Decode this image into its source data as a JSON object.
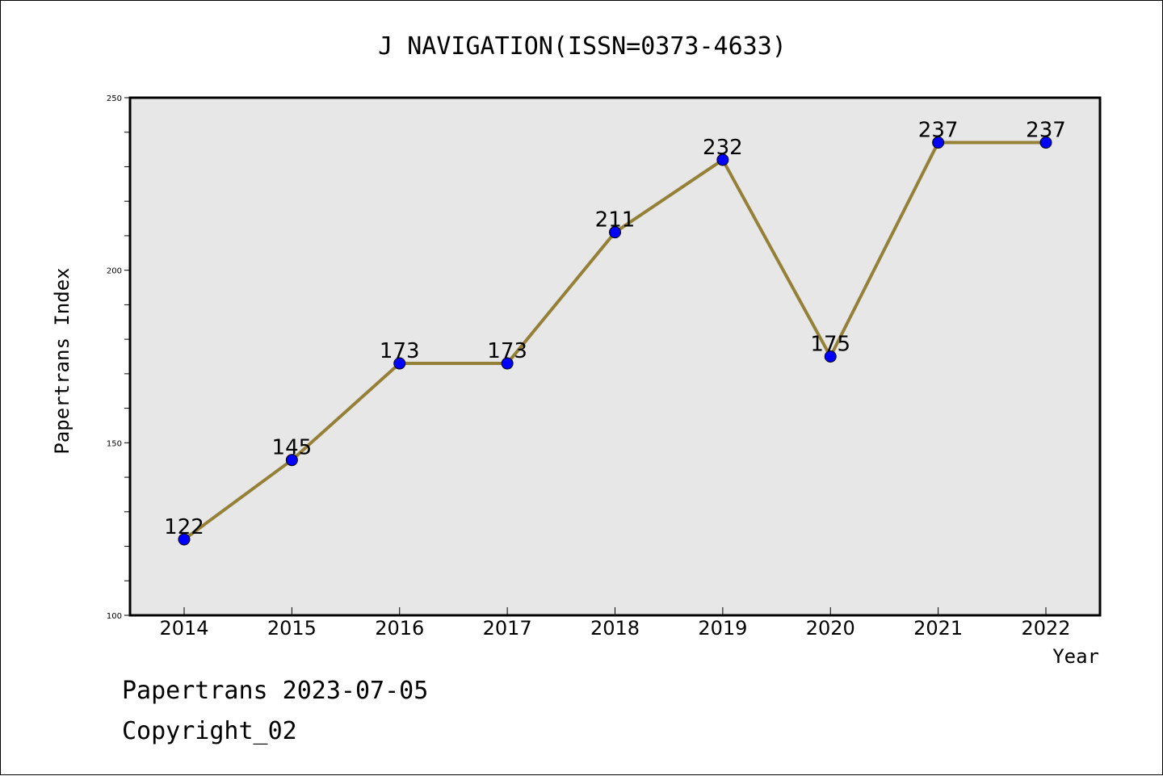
{
  "chart_data": {
    "type": "line",
    "title": "J NAVIGATION(ISSN=0373-4633)",
    "xlabel": "Year",
    "ylabel": "Papertrans Index",
    "categories": [
      "2014",
      "2015",
      "2016",
      "2017",
      "2018",
      "2019",
      "2020",
      "2021",
      "2022"
    ],
    "series": [
      {
        "values": [
          122,
          145,
          173,
          173,
          211,
          232,
          175,
          237,
          237
        ]
      }
    ],
    "ylim": [
      100,
      250
    ],
    "yticks": [
      "100",
      "150",
      "200",
      "250"
    ],
    "data_labels": [
      "122",
      "145",
      "173",
      "173",
      "211",
      "232",
      "175",
      "237",
      "237"
    ],
    "grid": false,
    "colors": {
      "line": "#948137",
      "marker": "#0000ff",
      "plot_background": "#e7e7e7"
    }
  },
  "footer": {
    "line1": "Papertrans 2023-07-05",
    "line2": "Copyright_02"
  }
}
